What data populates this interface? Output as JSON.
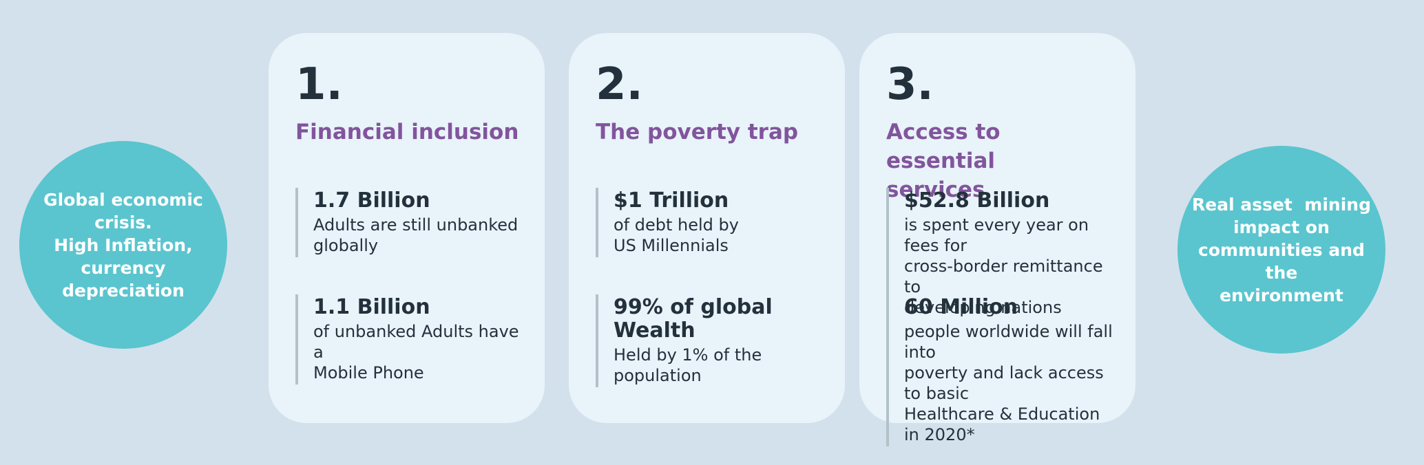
{
  "colors": {
    "background": "#d3e1ec",
    "card": "#e9f3fa",
    "circle": "#5ac5ce",
    "accent_purple": "#81559c",
    "text_dark": "#23313c",
    "stat_bar": "#b3c1c9",
    "circle_text": "#ffffff"
  },
  "left_circle": {
    "text": "Global economic\ncrisis.\nHigh Inflation,\ncurrency\ndepreciation"
  },
  "right_circle": {
    "text": "Real asset  mining\nimpact on\ncommunities and the\nenvironment"
  },
  "cards": [
    {
      "number": "1.",
      "title": "Financial inclusion",
      "stats": [
        {
          "value": "1.7 Billion",
          "desc": "Adults are still unbanked\nglobally"
        },
        {
          "value": "1.1 Billion",
          "desc": "of unbanked Adults have a\nMobile Phone"
        }
      ]
    },
    {
      "number": "2.",
      "title": "The poverty trap",
      "stats": [
        {
          "value": "$1 Trillion",
          "desc": "of debt held by\nUS Millennials"
        },
        {
          "value": "99% of global Wealth",
          "desc": "Held by 1% of the\npopulation"
        }
      ]
    },
    {
      "number": "3.",
      "title": "Access to essential\nservices",
      "stats": [
        {
          "value": "$52.8 Billion",
          "desc": "is spent every year on fees for\ncross-border remittance to\ndeveloping nations"
        },
        {
          "value": "60 Million",
          "desc": "people worldwide will fall into\npoverty and lack access to basic\nHealthcare & Education in 2020*"
        }
      ]
    }
  ]
}
